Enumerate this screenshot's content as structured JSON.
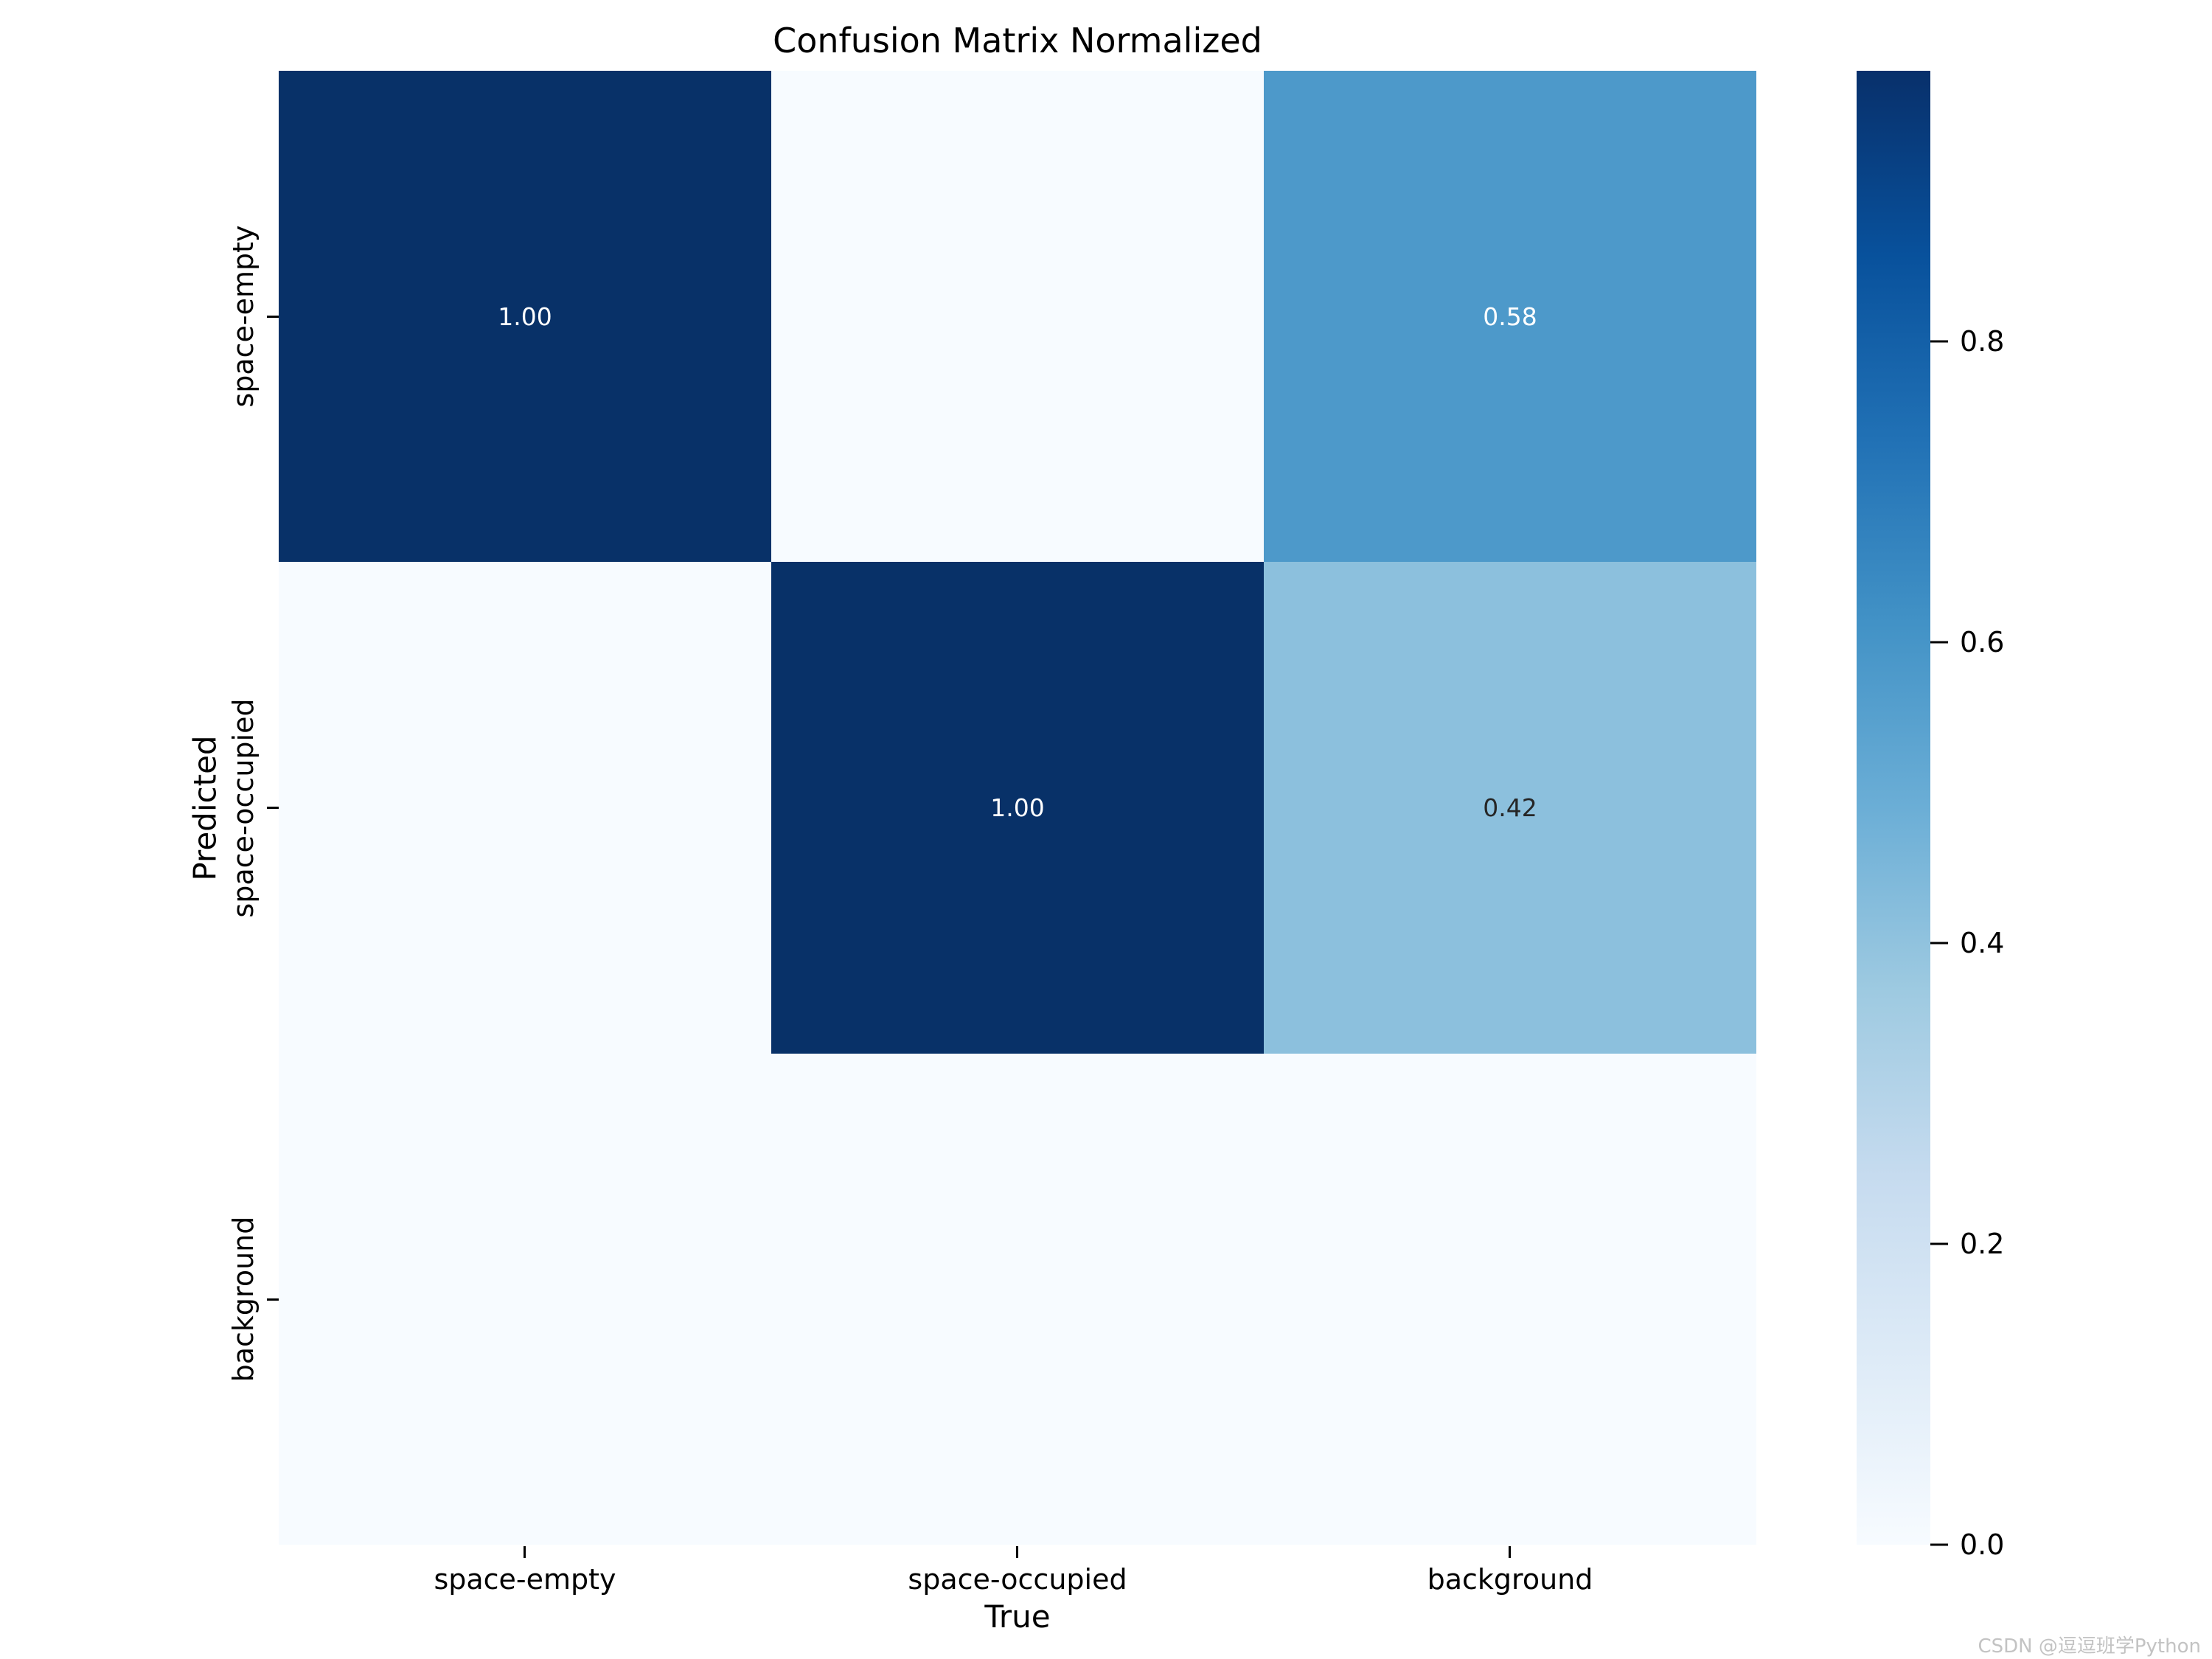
{
  "title": "Confusion Matrix Normalized",
  "watermark": "CSDN @逗逗班学Python",
  "chart_data": {
    "type": "heatmap",
    "title": "Confusion Matrix Normalized",
    "xlabel": "True",
    "ylabel": "Predicted",
    "x_categories": [
      "space-empty",
      "space-occupied",
      "background"
    ],
    "y_categories": [
      "space-empty",
      "space-occupied",
      "background"
    ],
    "matrix": [
      [
        1.0,
        0.0,
        0.58
      ],
      [
        0.0,
        1.0,
        0.42
      ],
      [
        0.0,
        0.0,
        0.0
      ]
    ],
    "cells": [
      {
        "row": 0,
        "col": 0,
        "label": "1.00",
        "bg": "#083168",
        "text_color": "#ffffff"
      },
      {
        "row": 0,
        "col": 1,
        "label": "",
        "bg": "#f7fbff",
        "text_color": "#262626"
      },
      {
        "row": 0,
        "col": 2,
        "label": "0.58",
        "bg": "#4d99ca",
        "text_color": "#ffffff"
      },
      {
        "row": 1,
        "col": 0,
        "label": "",
        "bg": "#f7fbff",
        "text_color": "#262626"
      },
      {
        "row": 1,
        "col": 1,
        "label": "1.00",
        "bg": "#083168",
        "text_color": "#ffffff"
      },
      {
        "row": 1,
        "col": 2,
        "label": "0.42",
        "bg": "#8cc0dd",
        "text_color": "#262626"
      },
      {
        "row": 2,
        "col": 0,
        "label": "",
        "bg": "#f7fbff",
        "text_color": "#262626"
      },
      {
        "row": 2,
        "col": 1,
        "label": "",
        "bg": "#f7fbff",
        "text_color": "#262626"
      },
      {
        "row": 2,
        "col": 2,
        "label": "",
        "bg": "#f7fbff",
        "text_color": "#262626"
      }
    ],
    "colormap": "Blues",
    "grid": false,
    "colorbar": {
      "vmin": 0.0,
      "vmax": 0.98,
      "ticks": [
        {
          "label": "0.8",
          "value": 0.8
        },
        {
          "label": "0.6",
          "value": 0.6
        },
        {
          "label": "0.4",
          "value": 0.4
        },
        {
          "label": "0.2",
          "value": 0.2
        },
        {
          "label": "0.0",
          "value": 0.0
        }
      ],
      "gradient_stops": [
        "#08306b",
        "#08519c",
        "#2171b5",
        "#4292c6",
        "#6baed6",
        "#9ecae1",
        "#c6dbef",
        "#deebf7",
        "#f7fbff"
      ]
    }
  }
}
